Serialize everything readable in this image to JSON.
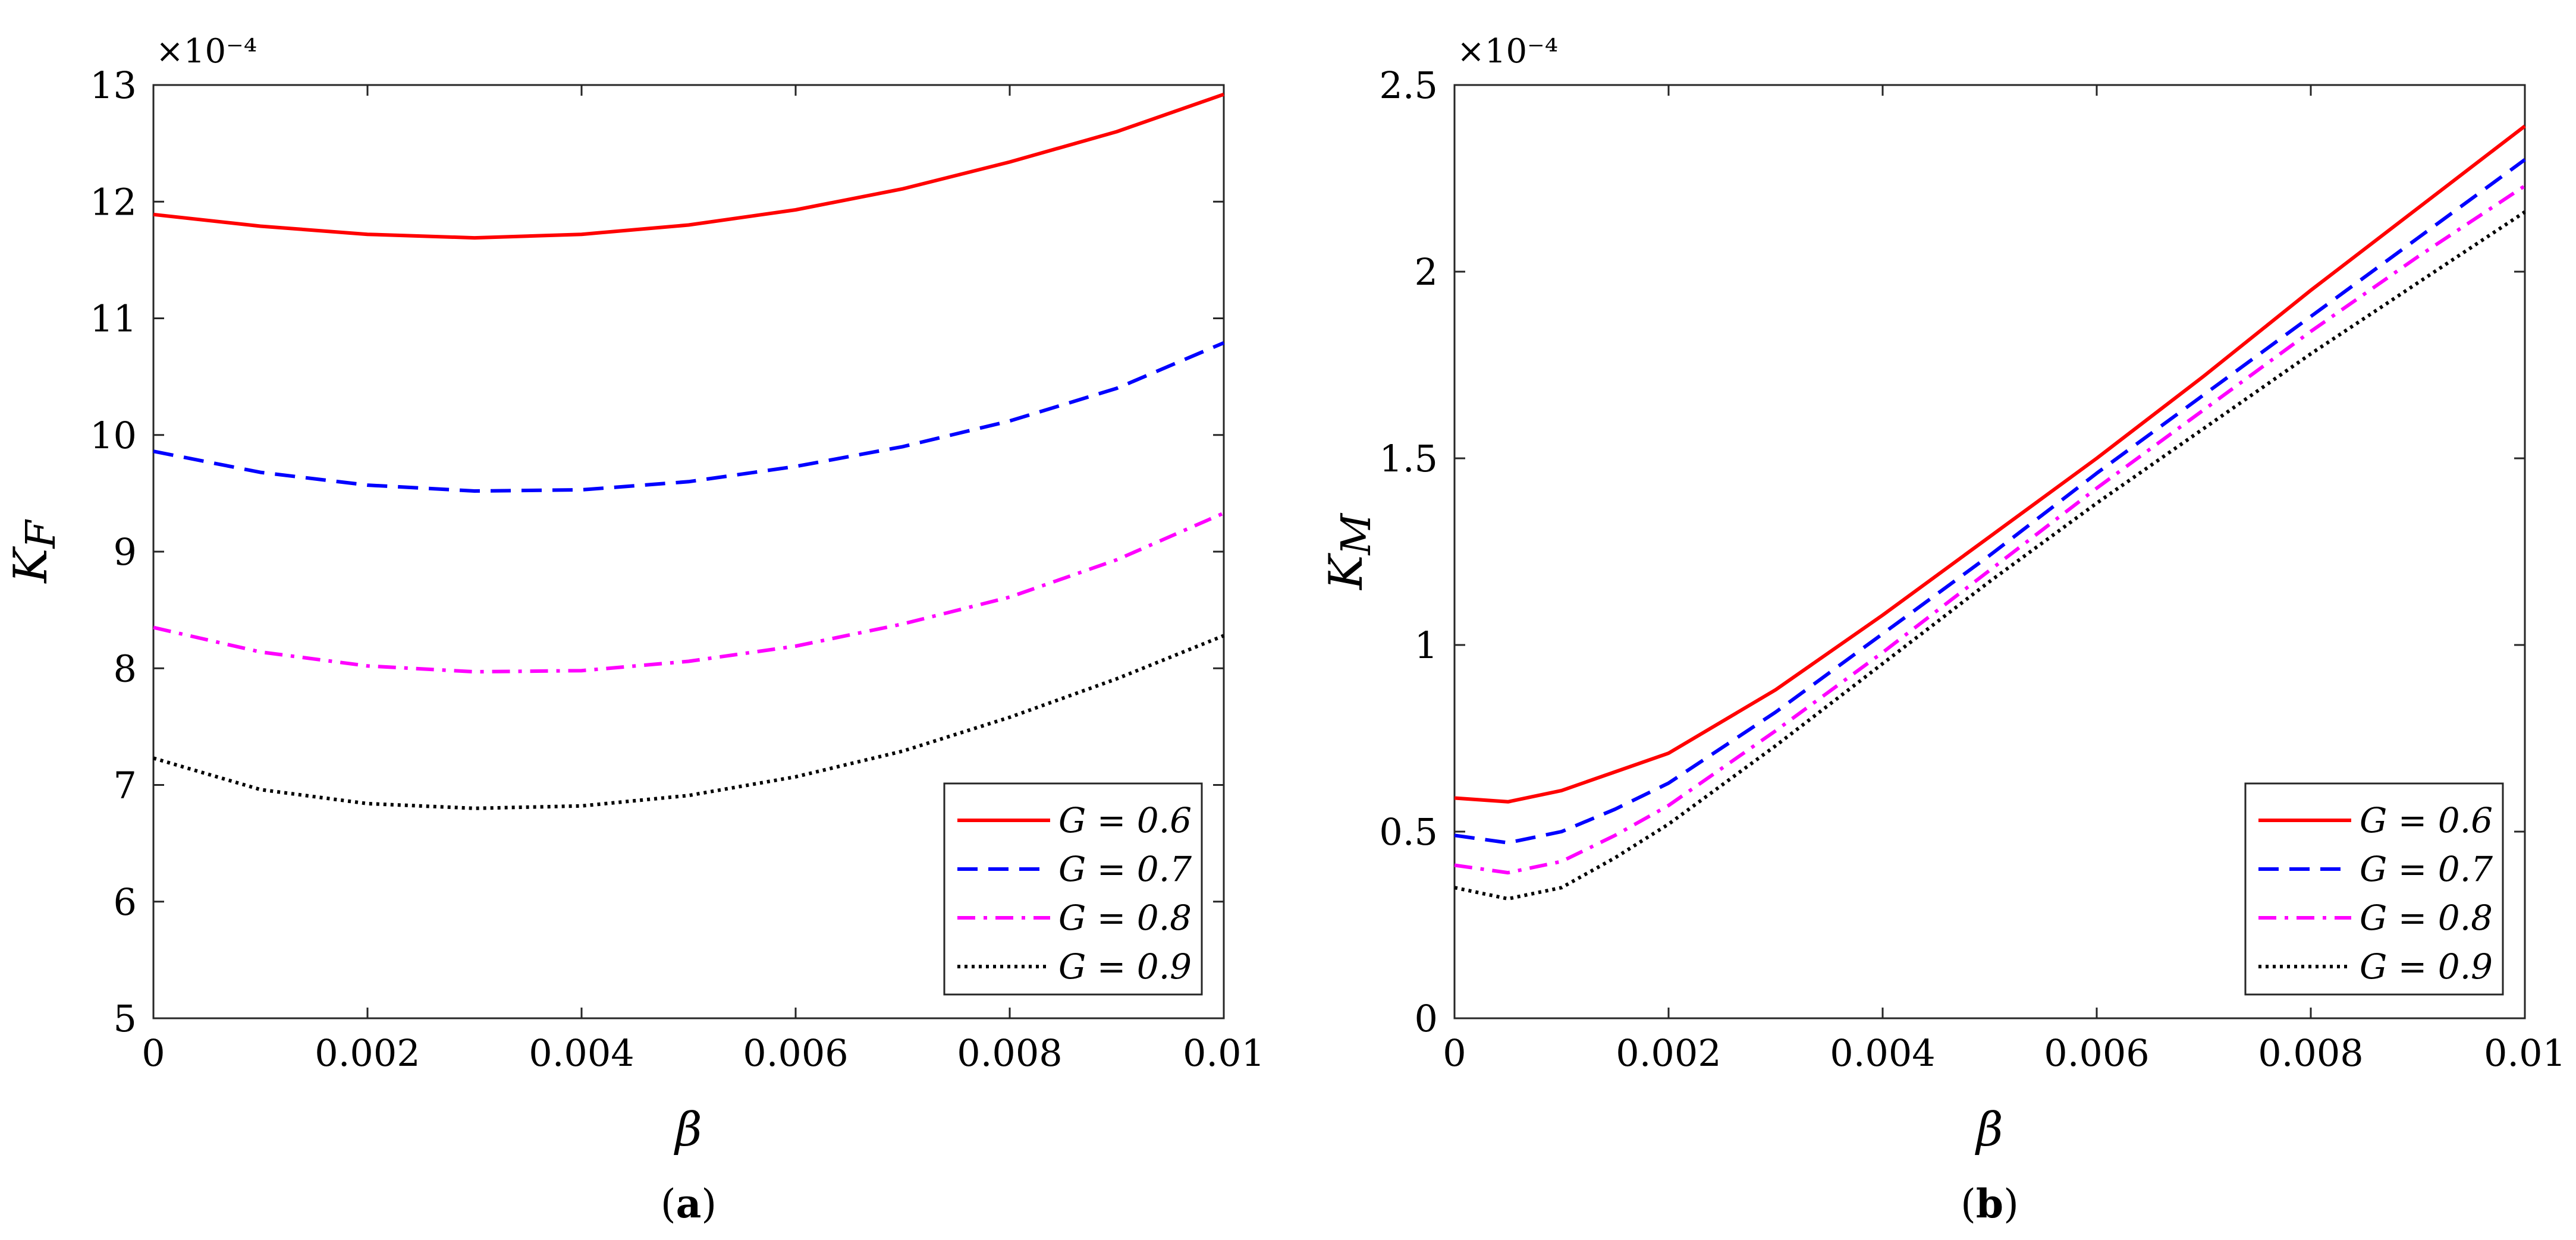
{
  "figure": {
    "panel_labels": [
      "(a)",
      "(b)"
    ],
    "legend_entries": [
      "G = 0.6",
      "G = 0.7",
      "G = 0.8",
      "G = 0.9"
    ]
  },
  "chart_data": [
    {
      "type": "line",
      "panel": "(a)",
      "ylabel": "K",
      "ylabel_sub": "F",
      "xlabel": "β",
      "y_multiplier": "×10⁻⁴",
      "xlim": [
        0,
        0.01
      ],
      "ylim": [
        5,
        13
      ],
      "xticks": [
        0,
        0.002,
        0.004,
        0.006,
        0.008,
        0.01
      ],
      "xtick_labels": [
        "0",
        "0.002",
        "0.004",
        "0.006",
        "0.008",
        "0.01"
      ],
      "yticks": [
        5,
        6,
        7,
        8,
        9,
        10,
        11,
        12,
        13
      ],
      "ytick_labels": [
        "5",
        "6",
        "7",
        "8",
        "9",
        "10",
        "11",
        "12",
        "13"
      ],
      "grid": false,
      "legend_position": "bottom-right",
      "series": [
        {
          "name": "G = 0.6",
          "color": "#ff0000",
          "dash": "solid",
          "x": [
            0,
            0.001,
            0.002,
            0.003,
            0.004,
            0.005,
            0.006,
            0.007,
            0.008,
            0.009,
            0.01
          ],
          "y": [
            11.89,
            11.79,
            11.72,
            11.69,
            11.72,
            11.8,
            11.93,
            12.11,
            12.34,
            12.6,
            12.92
          ]
        },
        {
          "name": "G = 0.7",
          "color": "#0000ff",
          "dash": "dashed",
          "x": [
            0,
            0.001,
            0.002,
            0.003,
            0.004,
            0.005,
            0.006,
            0.007,
            0.008,
            0.009,
            0.01
          ],
          "y": [
            9.86,
            9.68,
            9.57,
            9.52,
            9.53,
            9.6,
            9.73,
            9.9,
            10.12,
            10.4,
            10.79
          ]
        },
        {
          "name": "G = 0.8",
          "color": "#ff00ff",
          "dash": "dashdot",
          "x": [
            0,
            0.001,
            0.002,
            0.003,
            0.004,
            0.005,
            0.006,
            0.007,
            0.008,
            0.009,
            0.01
          ],
          "y": [
            8.35,
            8.14,
            8.02,
            7.97,
            7.98,
            8.06,
            8.19,
            8.38,
            8.61,
            8.93,
            9.33
          ]
        },
        {
          "name": "G = 0.9",
          "color": "#000000",
          "dash": "dotted",
          "x": [
            0,
            0.001,
            0.002,
            0.003,
            0.004,
            0.005,
            0.006,
            0.007,
            0.008,
            0.009,
            0.01
          ],
          "y": [
            7.23,
            6.96,
            6.84,
            6.8,
            6.82,
            6.91,
            7.07,
            7.29,
            7.58,
            7.91,
            8.28
          ]
        }
      ]
    },
    {
      "type": "line",
      "panel": "(b)",
      "ylabel": "K",
      "ylabel_sub": "M",
      "xlabel": "β",
      "y_multiplier": "×10⁻⁴",
      "xlim": [
        0,
        0.01
      ],
      "ylim": [
        0,
        2.5
      ],
      "xticks": [
        0,
        0.002,
        0.004,
        0.006,
        0.008,
        0.01
      ],
      "xtick_labels": [
        "0",
        "0.002",
        "0.004",
        "0.006",
        "0.008",
        "0.01"
      ],
      "yticks": [
        0,
        0.5,
        1,
        1.5,
        2,
        2.5
      ],
      "ytick_labels": [
        "0",
        "0.5",
        "1",
        "1.5",
        "2",
        "2.5"
      ],
      "grid": false,
      "legend_position": "bottom-right",
      "series": [
        {
          "name": "G = 0.6",
          "color": "#ff0000",
          "dash": "solid",
          "x": [
            0,
            0.0005,
            0.001,
            0.0015,
            0.002,
            0.003,
            0.004,
            0.005,
            0.006,
            0.007,
            0.008,
            0.009,
            0.01
          ],
          "y": [
            0.59,
            0.58,
            0.61,
            0.66,
            0.71,
            0.88,
            1.08,
            1.29,
            1.5,
            1.72,
            1.95,
            2.17,
            2.39
          ]
        },
        {
          "name": "G = 0.7",
          "color": "#0000ff",
          "dash": "dashed",
          "x": [
            0,
            0.0005,
            0.001,
            0.0015,
            0.002,
            0.003,
            0.004,
            0.005,
            0.006,
            0.007,
            0.008,
            0.009,
            0.01
          ],
          "y": [
            0.49,
            0.47,
            0.5,
            0.56,
            0.63,
            0.82,
            1.03,
            1.24,
            1.46,
            1.67,
            1.88,
            2.09,
            2.3
          ]
        },
        {
          "name": "G = 0.8",
          "color": "#ff00ff",
          "dash": "dashdot",
          "x": [
            0,
            0.0005,
            0.001,
            0.0015,
            0.002,
            0.003,
            0.004,
            0.005,
            0.006,
            0.007,
            0.008,
            0.009,
            0.01
          ],
          "y": [
            0.41,
            0.39,
            0.42,
            0.49,
            0.57,
            0.77,
            0.98,
            1.2,
            1.42,
            1.63,
            1.84,
            2.04,
            2.23
          ]
        },
        {
          "name": "G = 0.9",
          "color": "#000000",
          "dash": "dotted",
          "x": [
            0,
            0.0005,
            0.001,
            0.0015,
            0.002,
            0.003,
            0.004,
            0.005,
            0.006,
            0.007,
            0.008,
            0.009,
            0.01
          ],
          "y": [
            0.35,
            0.32,
            0.35,
            0.43,
            0.52,
            0.73,
            0.95,
            1.17,
            1.38,
            1.58,
            1.78,
            1.97,
            2.16
          ]
        }
      ]
    }
  ]
}
